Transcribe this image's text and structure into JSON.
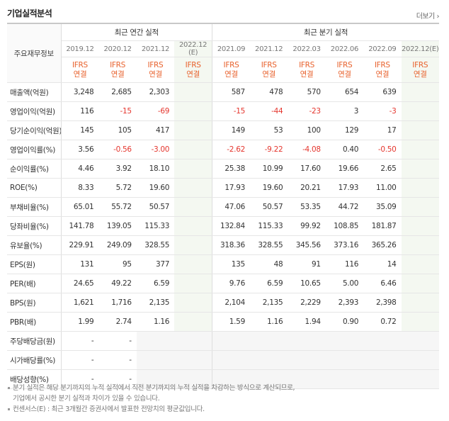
{
  "header": {
    "title": "기업실적분석",
    "more": "더보기"
  },
  "table": {
    "corner": "주요재무정보",
    "groups": [
      {
        "label": "최근 연간 실적",
        "span": 4
      },
      {
        "label": "최근 분기 실적",
        "span": 6
      }
    ],
    "columns": [
      {
        "date": "2019.12",
        "gaap": "IFRS",
        "consol": "연결"
      },
      {
        "date": "2020.12",
        "gaap": "IFRS",
        "consol": "연결"
      },
      {
        "date": "2021.12",
        "gaap": "IFRS",
        "consol": "연결"
      },
      {
        "date": "2022.12",
        "suffix": "(E)",
        "gaap": "IFRS",
        "consol": "연결"
      },
      {
        "date": "2021.09",
        "gaap": "IFRS",
        "consol": "연결"
      },
      {
        "date": "2021.12",
        "gaap": "IFRS",
        "consol": "연결"
      },
      {
        "date": "2022.03",
        "gaap": "IFRS",
        "consol": "연결"
      },
      {
        "date": "2022.06",
        "gaap": "IFRS",
        "consol": "연결"
      },
      {
        "date": "2022.09",
        "gaap": "IFRS",
        "consol": "연결"
      },
      {
        "date": "2022.12",
        "suffix": "(E)",
        "gaap": "IFRS",
        "consol": "연결"
      }
    ],
    "rows": [
      {
        "label": "매출액(억원)",
        "cells": [
          "3,248",
          "2,685",
          "2,303",
          null,
          "587",
          "478",
          "570",
          "654",
          "639",
          null
        ]
      },
      {
        "label": "영업이익(억원)",
        "cells": [
          "116",
          "-15",
          "-69",
          null,
          "-15",
          "-44",
          "-23",
          "3",
          "-3",
          null
        ]
      },
      {
        "label": "당기순이익(억원)",
        "cells": [
          "145",
          "105",
          "417",
          null,
          "149",
          "53",
          "100",
          "129",
          "17",
          null
        ]
      },
      {
        "label": "영업이익률(%)",
        "cells": [
          "3.56",
          "-0.56",
          "-3.00",
          null,
          "-2.62",
          "-9.22",
          "-4.08",
          "0.40",
          "-0.50",
          null
        ]
      },
      {
        "label": "순이익률(%)",
        "cells": [
          "4.46",
          "3.92",
          "18.10",
          null,
          "25.38",
          "10.99",
          "17.60",
          "19.66",
          "2.65",
          null
        ]
      },
      {
        "label": "ROE(%)",
        "cells": [
          "8.33",
          "5.72",
          "19.60",
          null,
          "17.93",
          "19.60",
          "20.21",
          "17.93",
          "11.00",
          null
        ]
      },
      {
        "label": "부채비율(%)",
        "cells": [
          "65.01",
          "55.72",
          "50.57",
          null,
          "47.06",
          "50.57",
          "53.35",
          "44.72",
          "35.09",
          null
        ]
      },
      {
        "label": "당좌비율(%)",
        "cells": [
          "141.78",
          "139.05",
          "115.33",
          null,
          "132.84",
          "115.33",
          "99.92",
          "108.85",
          "181.87",
          null
        ]
      },
      {
        "label": "유보율(%)",
        "cells": [
          "229.91",
          "249.09",
          "328.55",
          null,
          "318.36",
          "328.55",
          "345.56",
          "373.16",
          "365.26",
          null
        ]
      },
      {
        "label": "EPS(원)",
        "cells": [
          "131",
          "95",
          "377",
          null,
          "135",
          "48",
          "91",
          "116",
          "14",
          null
        ]
      },
      {
        "label": "PER(배)",
        "cells": [
          "24.65",
          "49.22",
          "6.59",
          null,
          "9.76",
          "6.59",
          "10.65",
          "5.00",
          "6.46",
          null
        ]
      },
      {
        "label": "BPS(원)",
        "cells": [
          "1,621",
          "1,716",
          "2,135",
          null,
          "2,104",
          "2,135",
          "2,229",
          "2,393",
          "2,398",
          null
        ]
      },
      {
        "label": "PBR(배)",
        "cells": [
          "1.99",
          "2.74",
          "1.16",
          null,
          "1.59",
          "1.16",
          "1.94",
          "0.90",
          "0.72",
          null
        ]
      },
      {
        "label": "주당배당금(원)",
        "cells": [
          "-",
          "-",
          null,
          null,
          null,
          null,
          null,
          null,
          null,
          null
        ]
      },
      {
        "label": "시가배당률(%)",
        "cells": [
          "-",
          "-",
          null,
          null,
          null,
          null,
          null,
          null,
          null,
          null
        ]
      },
      {
        "label": "배당성향(%)",
        "cells": [
          "-",
          "-",
          null,
          null,
          null,
          null,
          null,
          null,
          null,
          null
        ]
      }
    ]
  },
  "notes": [
    "분기 실적은 해당 분기까지의 누적 실적에서 직전 분기까지의 누적 실적을 차감하는 방식으로 계산되므로,",
    "기업에서 공시한 분기 실적과 차이가 있을 수 있습니다.",
    "컨센서스(E) : 최근 3개월간 증권사에서 발표한 전망치의 평균값입니다."
  ]
}
